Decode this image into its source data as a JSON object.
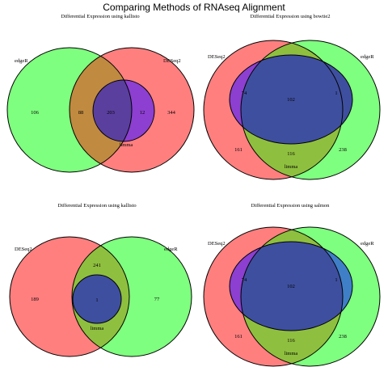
{
  "title": "Comparing Methods of RNAseq Alignment",
  "colors": {
    "red": "#ff7f7f",
    "green": "#7fff7f",
    "purple": "#8c3fd0",
    "blue": "#3f7fc8",
    "navy": "#3f4f9f",
    "brown": "#c08a40",
    "olive": "#8fbf3f",
    "indigo": "#5a3f9f"
  },
  "panels": [
    {
      "title": "Differential Expression using kallisto",
      "sets": [
        {
          "label": "edgeR"
        },
        {
          "label": "DESeq2"
        }
      ],
      "counts": [
        {
          "value": "106"
        },
        {
          "value": "88"
        },
        {
          "value": "203"
        },
        {
          "value": "12"
        },
        {
          "value": "344"
        }
      ],
      "region_label": "limma"
    },
    {
      "title": "Differential Expression using bowtie2",
      "sets": [
        {
          "label": "DESeq2"
        },
        {
          "label": "edgeR"
        }
      ],
      "counts": [
        {
          "value": "74"
        },
        {
          "value": "102"
        },
        {
          "value": "1"
        },
        {
          "value": "161"
        },
        {
          "value": "116"
        },
        {
          "value": "238"
        }
      ],
      "region_label": "limma"
    },
    {
      "title": "Differential Expression using kallisto",
      "sets": [
        {
          "label": "DESeq2"
        },
        {
          "label": "edgeR"
        }
      ],
      "counts": [
        {
          "value": "189"
        },
        {
          "value": "241"
        },
        {
          "value": "1"
        },
        {
          "value": "77"
        }
      ],
      "region_label": "limma"
    },
    {
      "title": "Differential Expression using salmon",
      "sets": [
        {
          "label": "DESeq2"
        },
        {
          "label": "edgeR"
        }
      ],
      "counts": [
        {
          "value": "74"
        },
        {
          "value": "102"
        },
        {
          "value": "1"
        },
        {
          "value": "161"
        },
        {
          "value": "116"
        },
        {
          "value": "238"
        }
      ],
      "region_label": "limma"
    }
  ]
}
